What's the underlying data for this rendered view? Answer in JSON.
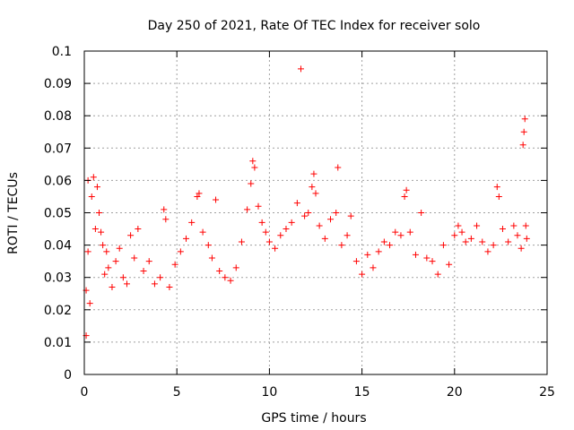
{
  "chart_data": {
    "type": "scatter",
    "title": "Day 250 of 2021, Rate Of TEC Index for receiver solo",
    "xlabel": "GPS time / hours",
    "ylabel": "ROTI / TECUs",
    "xlim": [
      0,
      25
    ],
    "ylim": [
      0,
      0.1
    ],
    "x_ticks": [
      0,
      5,
      10,
      15,
      20,
      25
    ],
    "x_tick_labels": [
      "0",
      "5",
      "10",
      "15",
      "20",
      "25"
    ],
    "y_ticks": [
      0,
      0.01,
      0.02,
      0.03,
      0.04,
      0.05,
      0.06,
      0.07,
      0.08,
      0.09,
      0.1
    ],
    "y_tick_labels": [
      "0",
      "0.01",
      "0.02",
      "0.03",
      "0.04",
      "0.05",
      "0.06",
      "0.07",
      "0.08",
      "0.09",
      "0.1"
    ],
    "grid": true,
    "marker": "+",
    "series_color": "#ff0000",
    "series": [
      {
        "name": "ROTI",
        "points": [
          [
            0.1,
            0.012
          ],
          [
            0.1,
            0.026
          ],
          [
            0.2,
            0.038
          ],
          [
            0.2,
            0.06
          ],
          [
            0.3,
            0.022
          ],
          [
            0.4,
            0.055
          ],
          [
            0.5,
            0.061
          ],
          [
            0.6,
            0.045
          ],
          [
            0.7,
            0.058
          ],
          [
            0.8,
            0.05
          ],
          [
            0.9,
            0.044
          ],
          [
            1.0,
            0.04
          ],
          [
            1.1,
            0.031
          ],
          [
            1.2,
            0.038
          ],
          [
            1.3,
            0.033
          ],
          [
            1.5,
            0.027
          ],
          [
            1.7,
            0.035
          ],
          [
            1.9,
            0.039
          ],
          [
            2.1,
            0.03
          ],
          [
            2.3,
            0.028
          ],
          [
            2.5,
            0.043
          ],
          [
            2.7,
            0.036
          ],
          [
            2.9,
            0.045
          ],
          [
            3.2,
            0.032
          ],
          [
            3.5,
            0.035
          ],
          [
            3.8,
            0.028
          ],
          [
            4.1,
            0.03
          ],
          [
            4.3,
            0.051
          ],
          [
            4.4,
            0.048
          ],
          [
            4.6,
            0.027
          ],
          [
            4.9,
            0.034
          ],
          [
            5.2,
            0.038
          ],
          [
            5.5,
            0.042
          ],
          [
            5.8,
            0.047
          ],
          [
            6.1,
            0.055
          ],
          [
            6.2,
            0.056
          ],
          [
            6.4,
            0.044
          ],
          [
            6.7,
            0.04
          ],
          [
            6.9,
            0.036
          ],
          [
            7.1,
            0.054
          ],
          [
            7.3,
            0.032
          ],
          [
            7.6,
            0.03
          ],
          [
            7.9,
            0.029
          ],
          [
            8.2,
            0.033
          ],
          [
            8.5,
            0.041
          ],
          [
            8.8,
            0.051
          ],
          [
            9.0,
            0.059
          ],
          [
            9.1,
            0.066
          ],
          [
            9.2,
            0.064
          ],
          [
            9.4,
            0.052
          ],
          [
            9.6,
            0.047
          ],
          [
            9.8,
            0.044
          ],
          [
            10.0,
            0.041
          ],
          [
            10.3,
            0.039
          ],
          [
            10.6,
            0.043
          ],
          [
            10.9,
            0.045
          ],
          [
            11.2,
            0.047
          ],
          [
            11.5,
            0.053
          ],
          [
            11.7,
            0.0945
          ],
          [
            11.9,
            0.049
          ],
          [
            12.1,
            0.05
          ],
          [
            12.3,
            0.058
          ],
          [
            12.4,
            0.062
          ],
          [
            12.5,
            0.056
          ],
          [
            12.7,
            0.046
          ],
          [
            13.0,
            0.042
          ],
          [
            13.3,
            0.048
          ],
          [
            13.6,
            0.05
          ],
          [
            13.7,
            0.064
          ],
          [
            13.9,
            0.04
          ],
          [
            14.2,
            0.043
          ],
          [
            14.4,
            0.049
          ],
          [
            14.7,
            0.035
          ],
          [
            15.0,
            0.031
          ],
          [
            15.3,
            0.037
          ],
          [
            15.6,
            0.033
          ],
          [
            15.9,
            0.038
          ],
          [
            16.2,
            0.041
          ],
          [
            16.5,
            0.04
          ],
          [
            16.8,
            0.044
          ],
          [
            17.1,
            0.043
          ],
          [
            17.3,
            0.055
          ],
          [
            17.4,
            0.057
          ],
          [
            17.6,
            0.044
          ],
          [
            17.9,
            0.037
          ],
          [
            18.2,
            0.05
          ],
          [
            18.5,
            0.036
          ],
          [
            18.8,
            0.035
          ],
          [
            19.1,
            0.031
          ],
          [
            19.4,
            0.04
          ],
          [
            19.7,
            0.034
          ],
          [
            20.0,
            0.043
          ],
          [
            20.2,
            0.046
          ],
          [
            20.4,
            0.044
          ],
          [
            20.6,
            0.041
          ],
          [
            20.9,
            0.042
          ],
          [
            21.2,
            0.046
          ],
          [
            21.5,
            0.041
          ],
          [
            21.8,
            0.038
          ],
          [
            22.1,
            0.04
          ],
          [
            22.3,
            0.058
          ],
          [
            22.4,
            0.055
          ],
          [
            22.6,
            0.045
          ],
          [
            22.9,
            0.041
          ],
          [
            23.2,
            0.046
          ],
          [
            23.4,
            0.043
          ],
          [
            23.6,
            0.039
          ],
          [
            23.7,
            0.071
          ],
          [
            23.75,
            0.075
          ],
          [
            23.8,
            0.079
          ],
          [
            23.85,
            0.046
          ],
          [
            23.9,
            0.042
          ]
        ]
      }
    ]
  }
}
